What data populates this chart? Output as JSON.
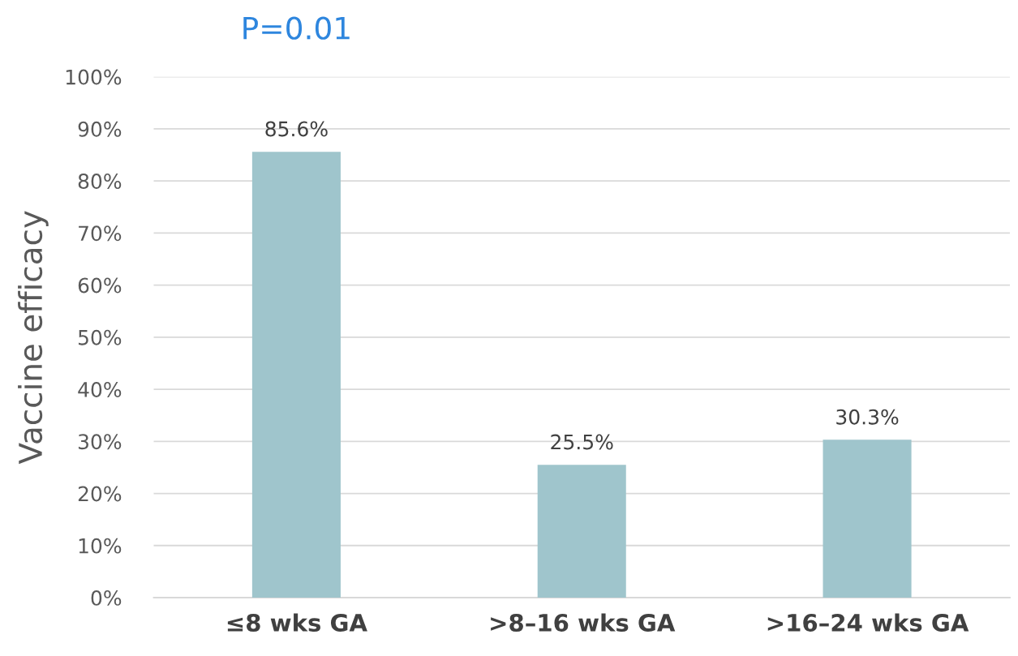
{
  "chart_data": {
    "type": "bar",
    "title": "P=0.01",
    "ylabel": "Vaccine efficacy",
    "categories": [
      "≤8 wks GA",
      ">8–16 wks GA",
      ">16–24 wks GA"
    ],
    "values": [
      85.6,
      25.5,
      30.3
    ],
    "color": "#9fc5cc",
    "value_labels": [
      "85.6%",
      "25.5%",
      "30.3%"
    ],
    "ylim": [
      0,
      100
    ],
    "yticks": [
      {
        "value": 0,
        "label": "0%"
      },
      {
        "value": 10,
        "label": "10%"
      },
      {
        "value": 20,
        "label": "20%"
      },
      {
        "value": 30,
        "label": "30%"
      },
      {
        "value": 40,
        "label": "40%"
      },
      {
        "value": 50,
        "label": "50%"
      },
      {
        "value": 60,
        "label": "60%"
      },
      {
        "value": 70,
        "label": "70%"
      },
      {
        "value": 80,
        "label": "80%"
      },
      {
        "value": 90,
        "label": "90%"
      },
      {
        "value": 100,
        "label": "100%"
      }
    ],
    "grid": "y"
  }
}
